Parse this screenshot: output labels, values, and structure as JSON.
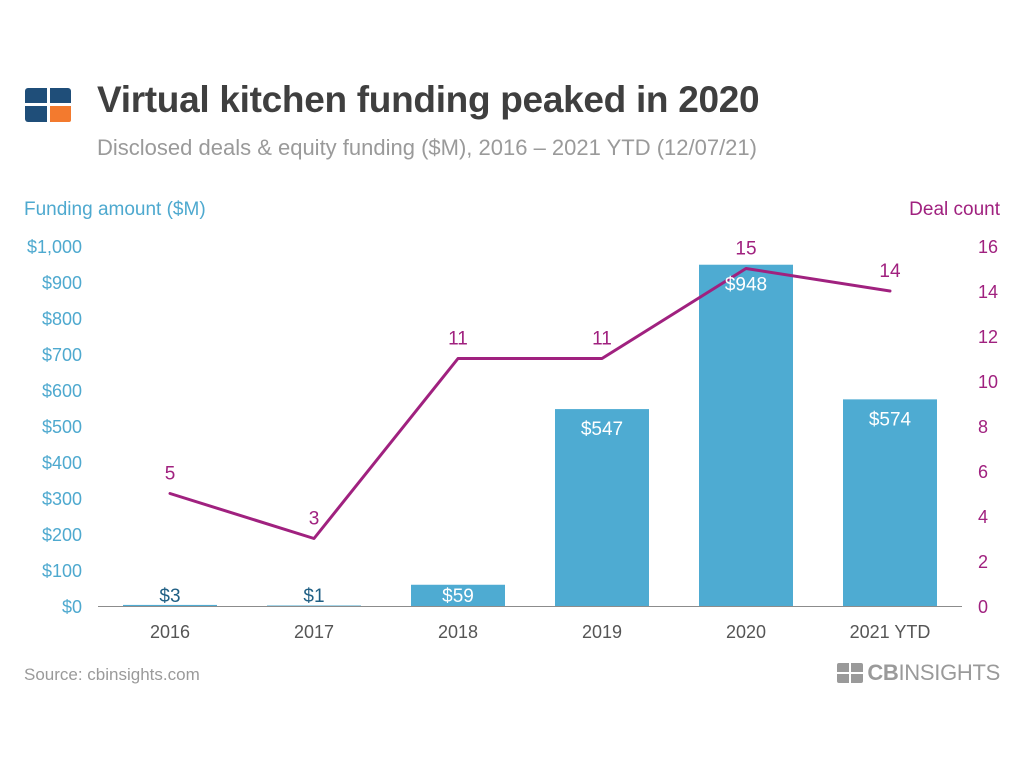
{
  "header": {
    "title": "Virtual kitchen funding peaked in 2020",
    "subtitle": "Disclosed deals & equity funding ($M), 2016 – 2021 YTD (12/07/21)",
    "logo_icon": "cb-insights-logo-icon"
  },
  "footer": {
    "source": "Source: cbinsights.com",
    "brand_cb": "CB",
    "brand_rest": "INSIGHTS"
  },
  "colors": {
    "bar": "#4eabd2",
    "line": "#a0217f",
    "left_axis": "#4ea9cf",
    "right_axis": "#a0217f"
  },
  "chart_data": {
    "type": "bar",
    "categories": [
      "2016",
      "2017",
      "2018",
      "2019",
      "2020",
      "2021 YTD"
    ],
    "series": [
      {
        "name": "Funding amount ($M)",
        "type": "bar",
        "axis": "left",
        "values": [
          3,
          1,
          59,
          547,
          948,
          574
        ],
        "labels": [
          "$3",
          "$1",
          "$59",
          "$547",
          "$948",
          "$574"
        ]
      },
      {
        "name": "Deal count",
        "type": "line",
        "axis": "right",
        "values": [
          5,
          3,
          11,
          11,
          15,
          14
        ],
        "labels": [
          "5",
          "3",
          "11",
          "11",
          "15",
          "14"
        ]
      }
    ],
    "y_left": {
      "label": "Funding amount ($M)",
      "range": [
        0,
        1000
      ],
      "ticks": [
        0,
        100,
        200,
        300,
        400,
        500,
        600,
        700,
        800,
        900,
        1000
      ],
      "tick_labels": [
        "$0",
        "$100",
        "$200",
        "$300",
        "$400",
        "$500",
        "$600",
        "$700",
        "$800",
        "$900",
        "$1,000"
      ]
    },
    "y_right": {
      "label": "Deal count",
      "range": [
        0,
        16
      ],
      "ticks": [
        0,
        2,
        4,
        6,
        8,
        10,
        12,
        14,
        16
      ],
      "tick_labels": [
        "0",
        "2",
        "4",
        "6",
        "8",
        "10",
        "12",
        "14",
        "16"
      ]
    },
    "grid": false
  }
}
